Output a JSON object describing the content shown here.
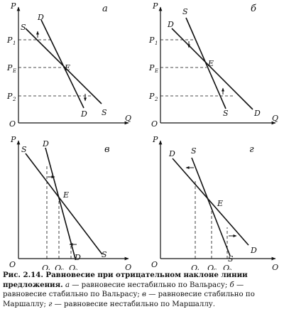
{
  "panels": [
    {
      "id": "a",
      "panel_label": "а",
      "axis_y": "P",
      "axis_x": "Q",
      "origin": "O",
      "curve_labels": {
        "s_top": "S",
        "d_top": "D",
        "s_bottom": "S",
        "d_bottom": "D"
      },
      "equilibrium": "E",
      "price_labels": [
        {
          "main": "P",
          "sub": "1"
        },
        {
          "main": "P",
          "sub": "E"
        },
        {
          "main": "P",
          "sub": "2"
        }
      ]
    },
    {
      "id": "b",
      "panel_label": "б",
      "axis_y": "P",
      "axis_x": "Q",
      "origin": "O",
      "curve_labels": {
        "s_top": "S",
        "d_top": "D",
        "s_bottom": "S",
        "d_bottom": "D"
      },
      "equilibrium": "E",
      "price_labels": [
        {
          "main": "P",
          "sub": "1"
        },
        {
          "main": "P",
          "sub": "E"
        },
        {
          "main": "P",
          "sub": "2"
        }
      ]
    },
    {
      "id": "v",
      "panel_label": "в",
      "axis_y": "P",
      "axis_x": "Q",
      "origin": "O",
      "curve_labels": {
        "s_top": "S",
        "d_top": "D",
        "s_bottom": "S",
        "d_bottom": "D"
      },
      "equilibrium": "E",
      "quantity_labels": [
        {
          "main": "Q",
          "sub": "1"
        },
        {
          "main": "Q",
          "sub": "E"
        },
        {
          "main": "Q",
          "sub": "2"
        }
      ]
    },
    {
      "id": "g",
      "panel_label": "г",
      "axis_y": "P",
      "axis_x": "Q",
      "origin": "O",
      "curve_labels": {
        "s_top": "S",
        "d_top": "D",
        "s_bottom": "S",
        "d_bottom": "D"
      },
      "equilibrium": "E",
      "quantity_labels": [
        {
          "main": "Q",
          "sub": "1"
        },
        {
          "main": "Q",
          "sub": "E"
        },
        {
          "main": "Q",
          "sub": "2"
        }
      ]
    }
  ],
  "caption": {
    "title": "Рис. 2.14. Равновесие при отрицательном наклоне линии предложения.",
    "parts": [
      {
        "letter": "а",
        "text": " — равновесие нестабильно по Вальрасу; "
      },
      {
        "letter": "б",
        "text": " — равновесие стабильно по Вальрасу; "
      },
      {
        "letter": "в",
        "text": " — равновесие стабильно по Маршаллу; "
      },
      {
        "letter": "г",
        "text": " — равновесие нестабильно по Маршаллу."
      }
    ]
  }
}
